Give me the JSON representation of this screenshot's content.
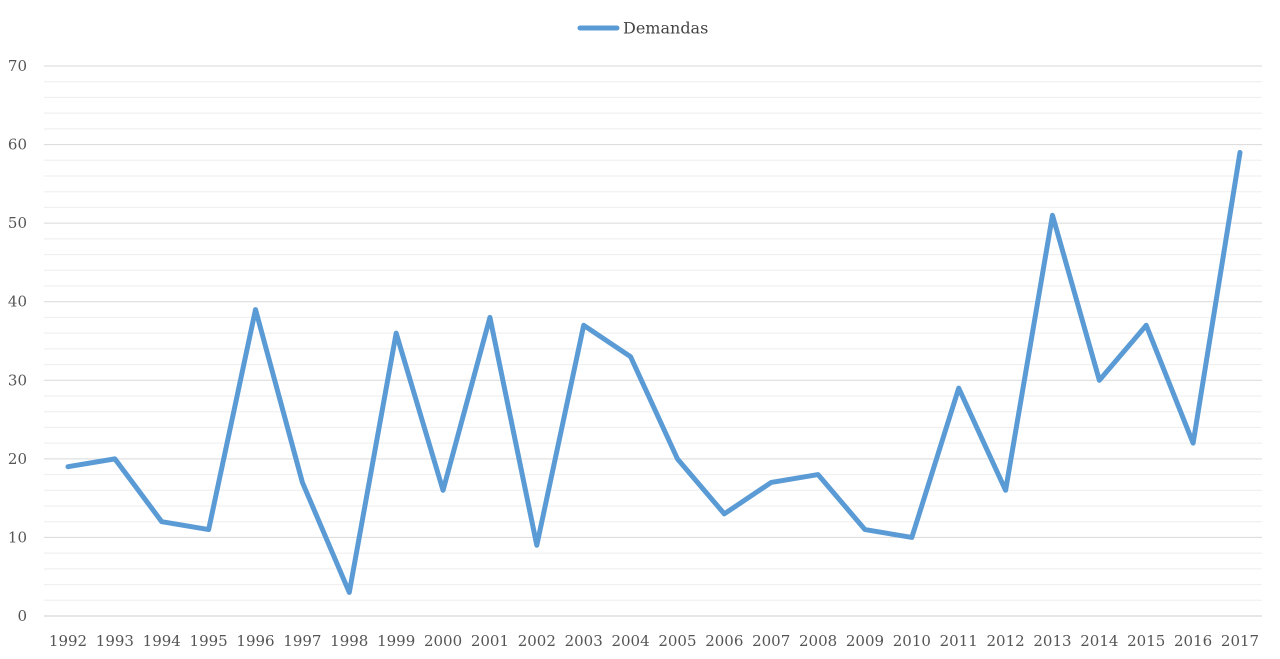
{
  "chart_data": {
    "type": "line",
    "title": "",
    "xlabel": "",
    "ylabel": "",
    "categories": [
      "1992",
      "1993",
      "1994",
      "1995",
      "1996",
      "1997",
      "1998",
      "1999",
      "2000",
      "2001",
      "2002",
      "2003",
      "2004",
      "2005",
      "2006",
      "2007",
      "2008",
      "2009",
      "2010",
      "2011",
      "2012",
      "2013",
      "2014",
      "2015",
      "2016",
      "2017"
    ],
    "series": [
      {
        "name": "Demandas",
        "color": "#5b9bd5",
        "values": [
          19,
          20,
          12,
          11,
          39,
          17,
          3,
          36,
          16,
          38,
          9,
          37,
          33,
          20,
          13,
          17,
          18,
          11,
          10,
          29,
          16,
          51,
          30,
          37,
          22,
          59
        ]
      }
    ],
    "ylim": [
      0,
      70
    ],
    "yticks": [
      0,
      10,
      20,
      30,
      40,
      50,
      60,
      70
    ],
    "grid": true,
    "minor_grid": true,
    "legend_position": "top-center"
  }
}
